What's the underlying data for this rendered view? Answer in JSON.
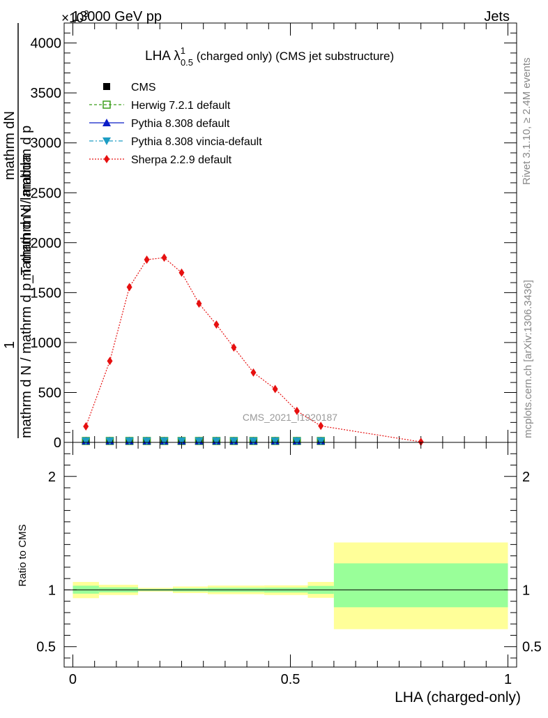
{
  "header": {
    "energy_label": "13000 GeV pp",
    "process_label": "Jets",
    "y_exponent_label": "×10",
    "y_exponent_power": "3"
  },
  "side_labels": {
    "rivet": "Rivet 3.1.10, ≥ 2.4M events",
    "mcplots": "mcplots.cern.ch [arXiv:1306.3436]"
  },
  "watermark": "CMS_2021_I1920187",
  "chart_data": [
    {
      "type": "line",
      "title_main": "LHA λ",
      "title_sup": "1",
      "title_sub": "0.5",
      "title_rest": " (charged only) (CMS jet substructure)",
      "ylabel_top": "mathrm dN",
      "ylabel_left": "mathrm d N / mathrm d p",
      "ylabel_one": "1",
      "ylabel_denom": "mathrm d N / mathrm d p_T mathrm d lambda",
      "ylabel_fragments": [
        "mathrm d N",
        "mathrm d p",
        "T",
        "mathrm d p",
        "T",
        "mathrm d lambda"
      ],
      "xlim": [
        -0.02,
        1.02
      ],
      "ylim": [
        0,
        4200
      ],
      "y_ticks": [
        {
          "value": 0,
          "label": "0"
        },
        {
          "value": 500,
          "label": "500"
        },
        {
          "value": 1000,
          "label": "1000"
        },
        {
          "value": 1500,
          "label": "1500"
        },
        {
          "value": 2000,
          "label": "2000"
        },
        {
          "value": 2500,
          "label": "2500"
        },
        {
          "value": 3000,
          "label": "3000"
        },
        {
          "value": 3500,
          "label": "3500"
        },
        {
          "value": 4000,
          "label": "4000"
        }
      ],
      "legend_position": "top-left",
      "series": [
        {
          "name": "CMS",
          "style": "square-filled",
          "color": "#000000",
          "x": [
            0.03,
            0.085,
            0.13,
            0.17,
            0.21,
            0.25,
            0.29,
            0.33,
            0.37,
            0.415,
            0.465,
            0.515,
            0.57
          ],
          "y": [
            0,
            0,
            0,
            0,
            0,
            0,
            0,
            0,
            0,
            0,
            0,
            0,
            0
          ]
        },
        {
          "name": "Herwig 7.2.1 default",
          "style": "square-open-dashed",
          "color": "#3a9e1a",
          "x": [
            0.03,
            0.085,
            0.13,
            0.17,
            0.21,
            0.25,
            0.29,
            0.33,
            0.37,
            0.415,
            0.465,
            0.515,
            0.57
          ],
          "y": [
            0,
            0,
            0,
            0,
            0,
            0,
            0,
            0,
            0,
            0,
            0,
            0,
            0
          ]
        },
        {
          "name": "Pythia 8.308 default",
          "style": "triangle-up-solid",
          "color": "#0b1ec8",
          "x": [
            0.03,
            0.085,
            0.13,
            0.17,
            0.21,
            0.25,
            0.29,
            0.33,
            0.37,
            0.415,
            0.465,
            0.515,
            0.57
          ],
          "y": [
            0,
            0,
            0,
            0,
            0,
            0,
            0,
            0,
            0,
            0,
            0,
            0,
            0
          ]
        },
        {
          "name": "Pythia 8.308 vincia-default",
          "style": "triangle-down-dashdot",
          "color": "#1d9dc3",
          "x": [
            0.03,
            0.085,
            0.13,
            0.17,
            0.21,
            0.25,
            0.29,
            0.33,
            0.37,
            0.415,
            0.465,
            0.515,
            0.57
          ],
          "y": [
            0,
            0,
            0,
            0,
            0,
            0,
            0,
            0,
            0,
            0,
            0,
            0,
            0
          ]
        },
        {
          "name": "Sherpa 2.2.9 default",
          "style": "diamond-dotted",
          "color": "#e61010",
          "x": [
            0.03,
            0.085,
            0.13,
            0.17,
            0.21,
            0.25,
            0.29,
            0.33,
            0.37,
            0.415,
            0.465,
            0.515,
            0.57,
            0.8
          ],
          "y": [
            160,
            815,
            1555,
            1830,
            1850,
            1700,
            1390,
            1180,
            950,
            700,
            535,
            315,
            165,
            5
          ]
        }
      ]
    },
    {
      "type": "area",
      "ylabel": "Ratio to CMS",
      "xlabel": "LHA (charged-only)",
      "xlim": [
        -0.02,
        1.02
      ],
      "ylim": [
        0.32,
        2.3
      ],
      "y_ticks": [
        {
          "value": 0.5,
          "label": "0.5"
        },
        {
          "value": 1,
          "label": "1"
        },
        {
          "value": 2,
          "label": "2"
        }
      ],
      "x_ticks": [
        {
          "value": 0,
          "label": "0"
        },
        {
          "value": 0.5,
          "label": "0.5"
        },
        {
          "value": 1,
          "label": "1"
        }
      ],
      "bands": [
        {
          "x0": 0.0,
          "x1": 0.06,
          "outer": [
            0.927,
            1.07
          ],
          "inner": [
            0.967,
            1.037
          ]
        },
        {
          "x0": 0.06,
          "x1": 0.15,
          "outer": [
            0.955,
            1.045
          ],
          "inner": [
            0.978,
            1.023
          ]
        },
        {
          "x0": 0.15,
          "x1": 0.23,
          "outer": [
            0.985,
            1.018
          ],
          "inner": [
            0.992,
            1.009
          ]
        },
        {
          "x0": 0.23,
          "x1": 0.31,
          "outer": [
            0.972,
            1.03
          ],
          "inner": [
            0.986,
            1.015
          ]
        },
        {
          "x0": 0.31,
          "x1": 0.44,
          "outer": [
            0.962,
            1.038
          ],
          "inner": [
            0.981,
            1.019
          ]
        },
        {
          "x0": 0.44,
          "x1": 0.54,
          "outer": [
            0.955,
            1.04
          ],
          "inner": [
            0.977,
            1.02
          ]
        },
        {
          "x0": 0.54,
          "x1": 0.6,
          "outer": [
            0.93,
            1.07
          ],
          "inner": [
            0.965,
            1.035
          ]
        },
        {
          "x0": 0.6,
          "x1": 1.0,
          "outer": [
            0.654,
            1.418
          ],
          "inner": [
            0.847,
            1.234
          ]
        }
      ],
      "colors": {
        "outer": "#ffff99",
        "inner": "#99ff99"
      }
    }
  ]
}
